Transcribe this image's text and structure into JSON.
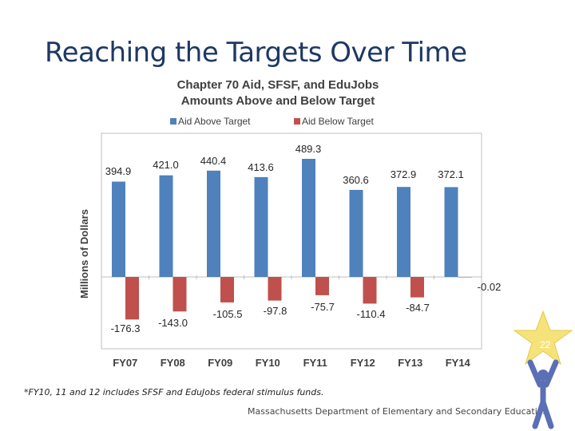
{
  "slide": {
    "title": "Reaching the Targets Over Time",
    "footnote": "*FY10, 11 and 12 includes SFSF and EduJobs federal stimulus funds.",
    "department": "Massachusetts Department of Elementary and Secondary Education",
    "page_number": "22"
  },
  "colors": {
    "above": "#4f81bd",
    "below": "#c0504d",
    "title": "#1f3864",
    "star": "#f5e37a",
    "figure": "#5a6fb5"
  },
  "chart_data": {
    "type": "bar",
    "title": "Chapter 70 Aid, SFSF, and EduJobs",
    "subtitle": "Amounts Above and Below Target",
    "xlabel": "",
    "ylabel": "Millions of Dollars",
    "ylim": [
      -200,
      500
    ],
    "categories": [
      "FY07",
      "FY08",
      "FY09",
      "FY10",
      "FY11",
      "FY12",
      "FY13",
      "FY14"
    ],
    "series": [
      {
        "name": "Aid Above Target",
        "values": [
          394.9,
          421.0,
          440.4,
          413.6,
          489.3,
          360.6,
          372.9,
          372.1
        ],
        "labels": [
          "394.9",
          "421.0",
          "440.4",
          "413.6",
          "489.3",
          "360.6",
          "372.9",
          "372.1"
        ]
      },
      {
        "name": "Aid Below Target",
        "values": [
          -176.3,
          -143.0,
          -105.5,
          -97.8,
          -75.7,
          -110.4,
          -84.7,
          -0.02
        ],
        "labels": [
          "-176.3",
          "-143.0",
          "-105.5",
          "-97.8",
          "-75.7",
          "-110.4",
          "-84.7",
          "-0.02"
        ]
      }
    ],
    "legend_position": "top"
  }
}
